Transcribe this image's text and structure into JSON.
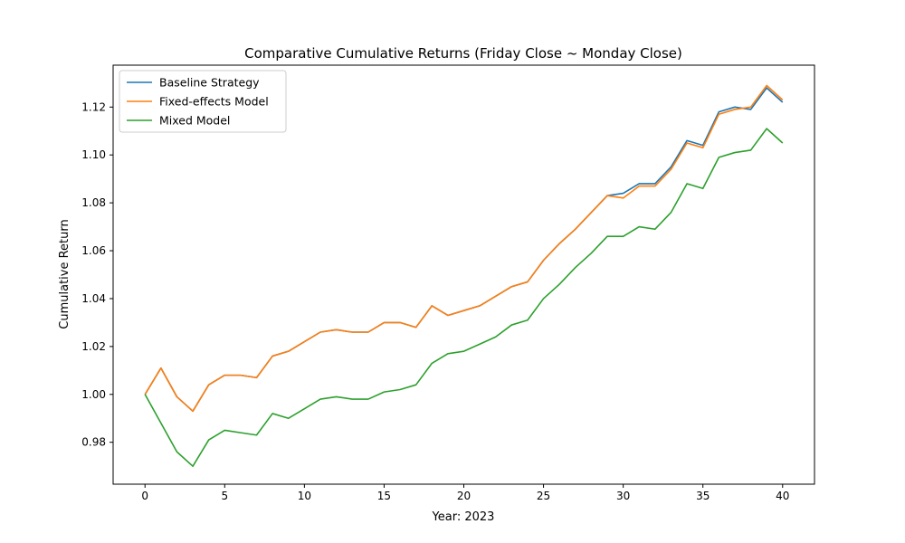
{
  "chart_data": {
    "type": "line",
    "title": "Comparative Cumulative Returns (Friday Close ~ Monday Close)",
    "xlabel": "Year: 2023",
    "ylabel": "Cumulative Return",
    "xlim": [
      -2,
      42
    ],
    "ylim": [
      0.9625,
      1.1375
    ],
    "xticks": [
      0,
      5,
      10,
      15,
      20,
      25,
      30,
      35,
      40
    ],
    "yticks": [
      0.98,
      1.0,
      1.02,
      1.04,
      1.06,
      1.08,
      1.1,
      1.12
    ],
    "ytick_labels": [
      "0.98",
      "1.00",
      "1.02",
      "1.04",
      "1.06",
      "1.08",
      "1.10",
      "1.12"
    ],
    "grid": false,
    "legend_position": "top-left",
    "x": [
      0,
      1,
      2,
      3,
      4,
      5,
      6,
      7,
      8,
      9,
      10,
      11,
      12,
      13,
      14,
      15,
      16,
      17,
      18,
      19,
      20,
      21,
      22,
      23,
      24,
      25,
      26,
      27,
      28,
      29,
      30,
      31,
      32,
      33,
      34,
      35,
      36,
      37,
      38,
      39,
      40
    ],
    "series": [
      {
        "name": "Baseline Strategy",
        "color": "#1f77b4",
        "values": [
          1.0,
          1.011,
          0.999,
          0.993,
          1.004,
          1.008,
          1.008,
          1.007,
          1.016,
          1.018,
          1.022,
          1.026,
          1.027,
          1.026,
          1.026,
          1.03,
          1.03,
          1.028,
          1.037,
          1.033,
          1.035,
          1.037,
          1.041,
          1.045,
          1.047,
          1.056,
          1.063,
          1.069,
          1.076,
          1.083,
          1.084,
          1.088,
          1.088,
          1.095,
          1.106,
          1.104,
          1.118,
          1.12,
          1.119,
          1.128,
          1.122
        ]
      },
      {
        "name": "Fixed-effects Model",
        "color": "#ff7f0e",
        "values": [
          1.0,
          1.011,
          0.999,
          0.993,
          1.004,
          1.008,
          1.008,
          1.007,
          1.016,
          1.018,
          1.022,
          1.026,
          1.027,
          1.026,
          1.026,
          1.03,
          1.03,
          1.028,
          1.037,
          1.033,
          1.035,
          1.037,
          1.041,
          1.045,
          1.047,
          1.056,
          1.063,
          1.069,
          1.076,
          1.083,
          1.082,
          1.087,
          1.087,
          1.094,
          1.105,
          1.103,
          1.117,
          1.119,
          1.12,
          1.129,
          1.123
        ]
      },
      {
        "name": "Mixed Model",
        "color": "#2ca02c",
        "values": [
          1.0,
          0.988,
          0.976,
          0.97,
          0.981,
          0.985,
          0.984,
          0.983,
          0.992,
          0.99,
          0.994,
          0.998,
          0.999,
          0.998,
          0.998,
          1.001,
          1.002,
          1.004,
          1.013,
          1.017,
          1.018,
          1.021,
          1.024,
          1.029,
          1.031,
          1.04,
          1.046,
          1.053,
          1.059,
          1.066,
          1.066,
          1.07,
          1.069,
          1.076,
          1.088,
          1.086,
          1.099,
          1.101,
          1.102,
          1.111,
          1.105
        ]
      }
    ]
  }
}
